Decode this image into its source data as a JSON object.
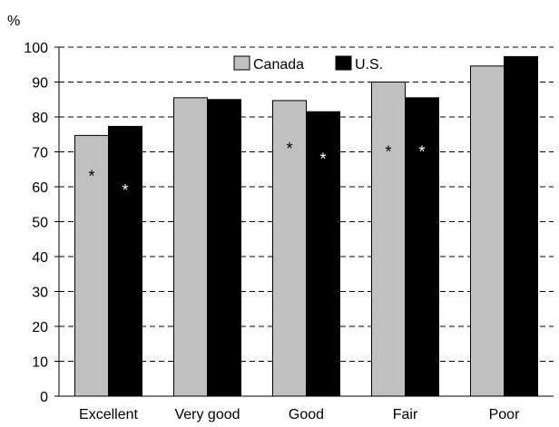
{
  "chart_data": {
    "type": "bar",
    "ylabel": "%",
    "ylim": [
      0,
      100
    ],
    "yticks": [
      0,
      10,
      20,
      30,
      40,
      50,
      60,
      70,
      80,
      90,
      100
    ],
    "grid": "horizontal-dashed",
    "legend_position": "top-center",
    "categories": [
      "Excellent",
      "Very good",
      "Good",
      "Fair",
      "Poor"
    ],
    "series": [
      {
        "name": "Canada",
        "color": "#c0c0c0",
        "values": [
          74.7,
          85.5,
          84.7,
          90.0,
          94.6
        ]
      },
      {
        "name": "U.S.",
        "color": "#000000",
        "values": [
          77.3,
          85.0,
          81.5,
          85.5,
          97.3
        ]
      }
    ],
    "annotations": [
      {
        "category": "Excellent",
        "series": "Canada",
        "text": "*",
        "y": 64
      },
      {
        "category": "Excellent",
        "series": "U.S.",
        "text": "*",
        "y": 60
      },
      {
        "category": "Good",
        "series": "Canada",
        "text": "*",
        "y": 72
      },
      {
        "category": "Good",
        "series": "U.S.",
        "text": "*",
        "y": 69
      },
      {
        "category": "Fair",
        "series": "Canada",
        "text": "*",
        "y": 71
      },
      {
        "category": "Fair",
        "series": "U.S.",
        "text": "*",
        "y": 71
      }
    ]
  }
}
